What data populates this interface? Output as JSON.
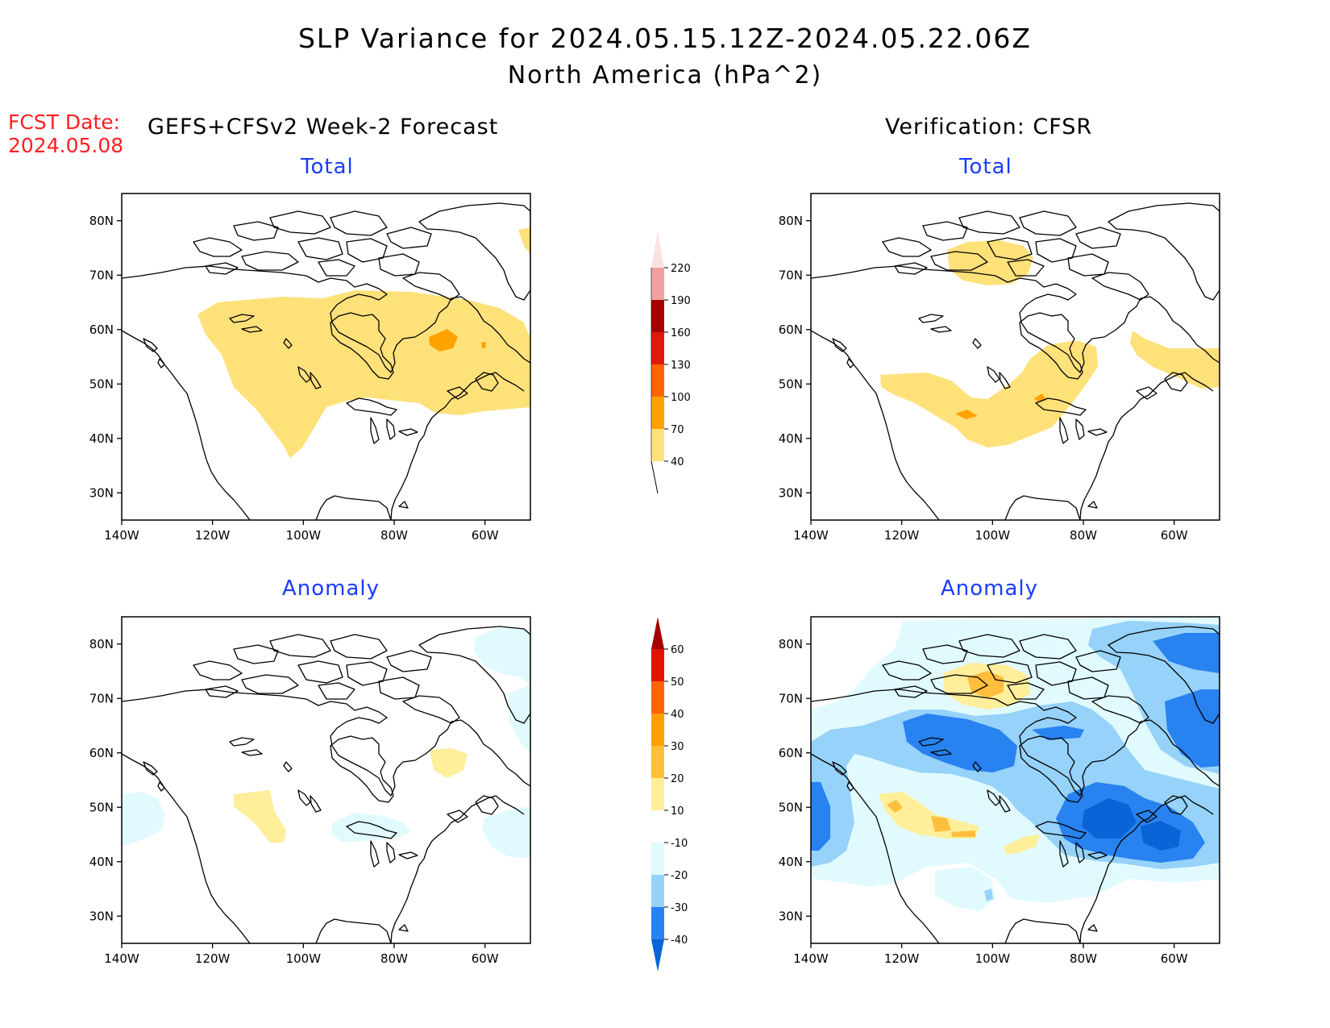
{
  "header": {
    "title": "SLP Variance for 2024.05.15.12Z-2024.05.22.06Z",
    "subtitle": "North America (hPa^2)"
  },
  "forecast_date": {
    "label": "FCST Date:",
    "value": "2024.05.08"
  },
  "columns": {
    "left": "GEFS+CFSv2 Week-2 Forecast",
    "right": "Verification: CFSR"
  },
  "panels": [
    {
      "id": "fcst-total",
      "title": "Total"
    },
    {
      "id": "verif-total",
      "title": "Total"
    },
    {
      "id": "fcst-anomaly",
      "title": "Anomaly"
    },
    {
      "id": "verif-anomaly",
      "title": "Anomaly"
    }
  ],
  "axes": {
    "lon_ticks": [
      "140W",
      "120W",
      "100W",
      "80W",
      "60W"
    ],
    "lat_ticks": [
      "80N",
      "70N",
      "60N",
      "50N",
      "40N",
      "30N"
    ],
    "lon_range": [
      -140,
      -50
    ],
    "lat_range": [
      25,
      85
    ]
  },
  "colorbars": {
    "total": {
      "levels": [
        "40",
        "70",
        "100",
        "130",
        "160",
        "190",
        "220"
      ],
      "colors": [
        "#ffe17a",
        "#ffa200",
        "#ff6400",
        "#e01a0a",
        "#a50000",
        "#f0a0a0",
        "#fbe2e2"
      ]
    },
    "anomaly": {
      "levels": [
        "-40",
        "-30",
        "-20",
        "-10",
        "10",
        "20",
        "30",
        "40",
        "50",
        "60"
      ],
      "colors": [
        "#0a64d8",
        "#2882f0",
        "#96d2fa",
        "#e1fafd",
        "#ffffff",
        "#ffee9a",
        "#ffbe3c",
        "#ffa000",
        "#ff6400",
        "#e11400",
        "#a50000"
      ]
    }
  },
  "colors": {
    "title": "#1a3cff",
    "fcst_date": "#ff2020"
  }
}
